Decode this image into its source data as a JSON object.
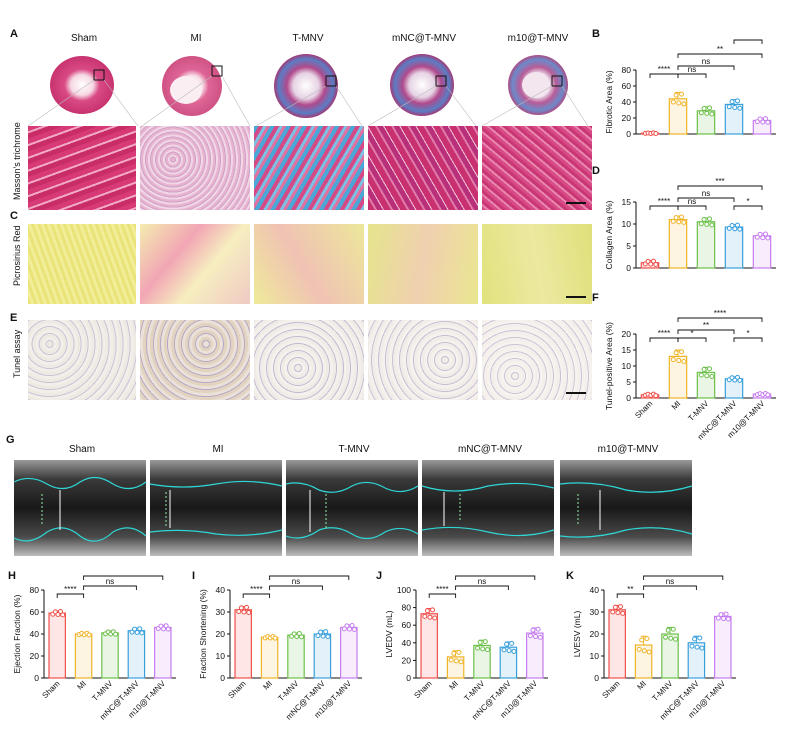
{
  "panels": {
    "A": "A",
    "B": "B",
    "C": "C",
    "D": "D",
    "E": "E",
    "F": "F",
    "G": "G",
    "H": "H",
    "I": "I",
    "J": "J",
    "K": "K"
  },
  "groups": [
    "Sham",
    "MI",
    "T-MNV",
    "mNC@T-MNV",
    "m10@T-MNV"
  ],
  "row_labels": {
    "masson": "Masson's trichrome",
    "picro": "Picrosirius Red",
    "tunel": "Tunel assay"
  },
  "colors": {
    "Sham": "#f0504a",
    "MI": "#f0b428",
    "T-MNV": "#6cc04a",
    "mNC@T-MNV": "#3aa0dc",
    "m10@T-MNV": "#c77cf0"
  },
  "chart_data": [
    {
      "id": "B",
      "type": "bar",
      "categories": [
        "Sham",
        "MI",
        "T-MNV",
        "mNC@T-MNV",
        "m10@T-MNV"
      ],
      "values": [
        1,
        44,
        29,
        37,
        17
      ],
      "errors": [
        0.5,
        8,
        5,
        6,
        3
      ],
      "ylabel": "Fibrotic Area (%)",
      "ylim": [
        0,
        80
      ],
      "yticks": [
        0,
        20,
        40,
        60,
        80
      ],
      "sig": [
        {
          "a": 0,
          "b": 1,
          "label": "****"
        },
        {
          "a": 1,
          "b": 2,
          "label": "ns"
        },
        {
          "a": 1,
          "b": 3,
          "label": "ns"
        },
        {
          "a": 3,
          "b": 4,
          "label": "*"
        },
        {
          "a": 1,
          "b": 4,
          "label": "**"
        }
      ],
      "xticks": false
    },
    {
      "id": "D",
      "type": "bar",
      "categories": [
        "Sham",
        "MI",
        "T-MNV",
        "mNC@T-MNV",
        "m10@T-MNV"
      ],
      "values": [
        1.2,
        11,
        10.5,
        9.3,
        7.3
      ],
      "errors": [
        0.5,
        0.8,
        0.9,
        0.6,
        0.6
      ],
      "ylabel": "Collagen Area (%)",
      "ylim": [
        0,
        15
      ],
      "yticks": [
        0,
        5,
        10,
        15
      ],
      "sig": [
        {
          "a": 0,
          "b": 1,
          "label": "****"
        },
        {
          "a": 1,
          "b": 2,
          "label": "ns"
        },
        {
          "a": 3,
          "b": 4,
          "label": "*"
        },
        {
          "a": 1,
          "b": 3,
          "label": "ns"
        },
        {
          "a": 1,
          "b": 4,
          "label": "***"
        }
      ],
      "xticks": false
    },
    {
      "id": "F",
      "type": "bar",
      "categories": [
        "Sham",
        "MI",
        "T-MNV",
        "mNC@T-MNV",
        "m10@T-MNV"
      ],
      "values": [
        1,
        13,
        8,
        6,
        1.2
      ],
      "errors": [
        0.3,
        2,
        1.6,
        0.6,
        0.3
      ],
      "ylabel": "Tunel-positive Area (%)",
      "ylim": [
        0,
        20
      ],
      "yticks": [
        0,
        5,
        10,
        15,
        20
      ],
      "sig": [
        {
          "a": 0,
          "b": 1,
          "label": "****"
        },
        {
          "a": 1,
          "b": 2,
          "label": "*"
        },
        {
          "a": 3,
          "b": 4,
          "label": "*"
        },
        {
          "a": 1,
          "b": 3,
          "label": "**"
        },
        {
          "a": 1,
          "b": 4,
          "label": "****"
        }
      ],
      "xticks": true
    },
    {
      "id": "H",
      "type": "bar",
      "categories": [
        "Sham",
        "MI",
        "T-MNV",
        "mNC@T-MNV",
        "m10@T-MNV"
      ],
      "values": [
        59,
        40,
        41,
        43,
        46
      ],
      "errors": [
        2,
        1,
        1.5,
        2.5,
        2
      ],
      "ylabel": "Ejection Fraction (%)",
      "ylim": [
        0,
        80
      ],
      "yticks": [
        0,
        20,
        40,
        60,
        80
      ],
      "sig": [
        {
          "a": 0,
          "b": 1,
          "label": "****"
        },
        {
          "a": 1,
          "b": 3,
          "label": "ns"
        },
        {
          "a": 1,
          "b": 4,
          "label": "*"
        }
      ],
      "xticks": true
    },
    {
      "id": "I",
      "type": "bar",
      "categories": [
        "Sham",
        "MI",
        "T-MNV",
        "mNC@T-MNV",
        "m10@T-MNV"
      ],
      "values": [
        31,
        18.5,
        19.5,
        20,
        23
      ],
      "errors": [
        1.5,
        0.5,
        1,
        1.5,
        1.2
      ],
      "ylabel": "Fraction Shortening (%)",
      "ylim": [
        0,
        40
      ],
      "yticks": [
        0,
        10,
        20,
        30,
        40
      ],
      "sig": [
        {
          "a": 0,
          "b": 1,
          "label": "****"
        },
        {
          "a": 1,
          "b": 3,
          "label": "ns"
        },
        {
          "a": 1,
          "b": 4,
          "label": "*"
        }
      ],
      "xticks": true
    },
    {
      "id": "J",
      "type": "bar",
      "categories": [
        "Sham",
        "MI",
        "T-MNV",
        "mNC@T-MNV",
        "m10@T-MNV"
      ],
      "values": [
        73,
        24,
        37,
        35,
        51
      ],
      "errors": [
        6,
        7,
        6,
        6,
        6
      ],
      "ylabel": "LVEDV (mL)",
      "ylim": [
        0,
        100
      ],
      "yticks": [
        0,
        20,
        40,
        60,
        80,
        100
      ],
      "sig": [
        {
          "a": 0,
          "b": 1,
          "label": "****"
        },
        {
          "a": 1,
          "b": 3,
          "label": "ns"
        },
        {
          "a": 1,
          "b": 4,
          "label": "*"
        }
      ],
      "xticks": true
    },
    {
      "id": "K",
      "type": "bar",
      "categories": [
        "Sham",
        "MI",
        "T-MNV",
        "mNC@T-MNV",
        "m10@T-MNV"
      ],
      "values": [
        31,
        15,
        20,
        16,
        28
      ],
      "errors": [
        2,
        4,
        3,
        3,
        1.5
      ],
      "ylabel": "LVESV (mL)",
      "ylim": [
        0,
        40
      ],
      "yticks": [
        0,
        10,
        20,
        30,
        40
      ],
      "sig": [
        {
          "a": 0,
          "b": 1,
          "label": "**"
        },
        {
          "a": 1,
          "b": 3,
          "label": "ns"
        },
        {
          "a": 1,
          "b": 4,
          "label": "*"
        }
      ],
      "xticks": true
    }
  ]
}
